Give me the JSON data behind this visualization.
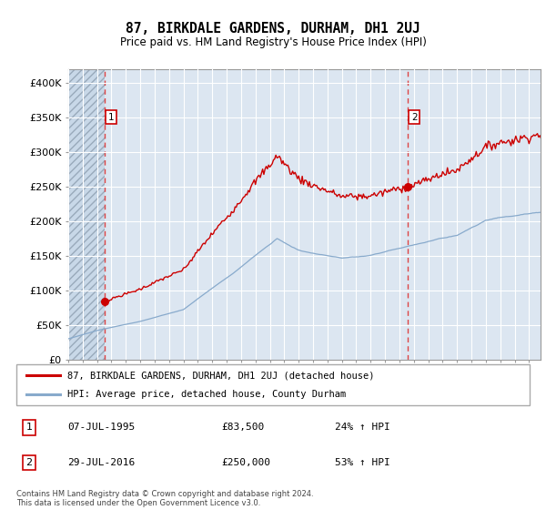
{
  "title": "87, BIRKDALE GARDENS, DURHAM, DH1 2UJ",
  "subtitle": "Price paid vs. HM Land Registry's House Price Index (HPI)",
  "ylim": [
    0,
    420000
  ],
  "yticks": [
    0,
    50000,
    100000,
    150000,
    200000,
    250000,
    300000,
    350000,
    400000
  ],
  "ytick_labels": [
    "£0",
    "£50K",
    "£100K",
    "£150K",
    "£200K",
    "£250K",
    "£300K",
    "£350K",
    "£400K"
  ],
  "xlim_start": 1993.0,
  "xlim_end": 2025.8,
  "hatch_end": 1995.52,
  "marker1_x": 1995.52,
  "marker1_y": 83500,
  "marker1_label": "1",
  "marker1_date": "07-JUL-1995",
  "marker1_price": "£83,500",
  "marker1_hpi": "24% ↑ HPI",
  "marker2_x": 2016.57,
  "marker2_y": 250000,
  "marker2_label": "2",
  "marker2_date": "29-JUL-2016",
  "marker2_price": "£250,000",
  "marker2_hpi": "53% ↑ HPI",
  "property_line_color": "#cc0000",
  "hpi_line_color": "#88aacc",
  "property_label": "87, BIRKDALE GARDENS, DURHAM, DH1 2UJ (detached house)",
  "hpi_label": "HPI: Average price, detached house, County Durham",
  "footnote": "Contains HM Land Registry data © Crown copyright and database right 2024.\nThis data is licensed under the Open Government Licence v3.0.",
  "plot_bg_color": "#dce6f1",
  "legend_border_color": "#aaaaaa",
  "vline_color": "#dd4444"
}
